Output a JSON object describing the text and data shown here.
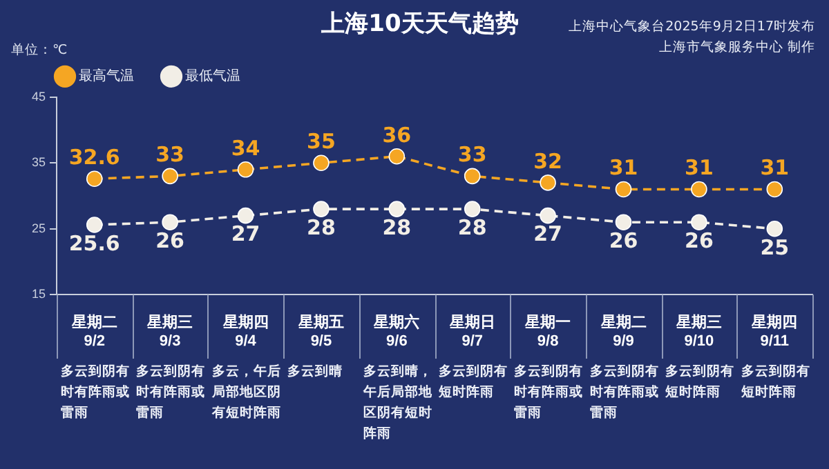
{
  "chart_data": {
    "type": "line",
    "title": "上海10天天气趋势",
    "ylabel": "单位：℃",
    "categories": [
      "星期二\n9/2",
      "星期三\n9/3",
      "星期四\n9/4",
      "星期五\n9/5",
      "星期六\n9/6",
      "星期日\n9/7",
      "星期一\n9/8",
      "星期二\n9/9",
      "星期三\n9/10",
      "星期四\n9/11"
    ],
    "series": [
      {
        "name": "最高气温",
        "color": "#f5a623",
        "values": [
          32.6,
          33,
          34,
          35,
          36,
          33,
          32,
          31,
          31,
          31
        ]
      },
      {
        "name": "最低气温",
        "color": "#f2eee6",
        "values": [
          25.6,
          26,
          27,
          28,
          28,
          28,
          27,
          26,
          26,
          25
        ]
      }
    ],
    "ylim": [
      15,
      45
    ],
    "yticks": [
      15,
      25,
      35,
      45
    ],
    "legend": "top left",
    "marker": "circle",
    "line_style": "dashed",
    "data_labels": true,
    "annotations": [
      "上海中心气象台2025年9月2日17时发布",
      "上海市气象服务中心 制作",
      "多云到阴有时有阵雨或雷雨",
      "多云到阴有时有阵雨或雷雨",
      "多云，午后局部地区阴有短时阵雨",
      "多云到晴",
      "多云到晴，午后局部地区阴有短时阵雨",
      "多云到阴有短时阵雨",
      "多云到阴有时有阵雨或雷雨",
      "多云到阴有时有阵雨或雷雨",
      "多云到阴有短时阵雨",
      "多云到阴有短时阵雨"
    ]
  }
}
